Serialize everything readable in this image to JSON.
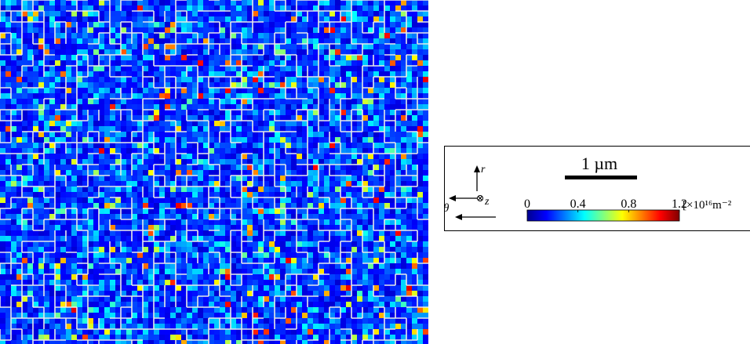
{
  "scale_bar": {
    "label": "1 µm"
  },
  "axes": {
    "r": "r",
    "z": "z",
    "theta": "θ"
  },
  "colorbar": {
    "colormap": "jet",
    "lim": [
      0,
      1.2
    ],
    "ticks": [
      0,
      0.4,
      0.8,
      1.2
    ],
    "unit": "[×10¹⁶m⁻²"
  }
}
